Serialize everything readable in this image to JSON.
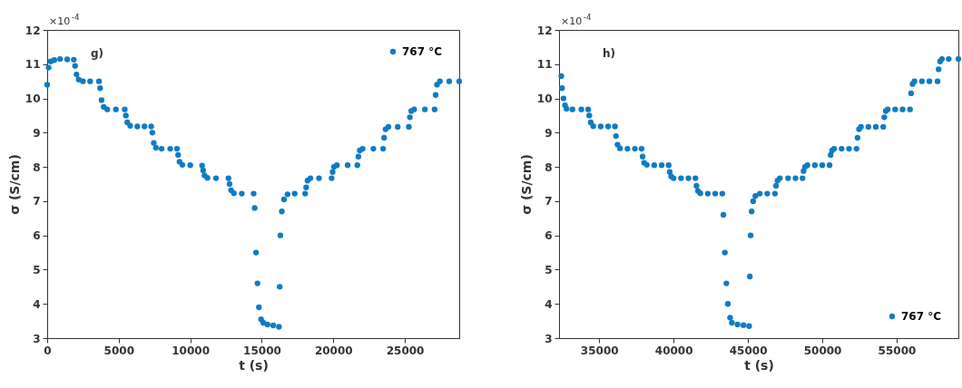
{
  "chart_data": [
    {
      "type": "scatter",
      "xlabel": "t (s)",
      "ylabel": "σ (S/cm)",
      "annotations": [
        "×10$^{-4}$",
        "g)"
      ],
      "xlim": [
        0,
        28800
      ],
      "xticks": [
        0,
        5000,
        10000,
        15000,
        20000,
        25000
      ],
      "ylim": [
        3,
        12
      ],
      "yticks": [
        3,
        4,
        5,
        6,
        7,
        8,
        9,
        10,
        11,
        12
      ],
      "legend": "top right",
      "marker": "circle",
      "series": [
        {
          "name": "767 °C",
          "color": "#0e7cc4",
          "x": [
            0,
            100,
            250,
            500,
            900,
            1400,
            1860,
            1950,
            2050,
            2200,
            2500,
            3000,
            3620,
            3700,
            3800,
            3950,
            4200,
            4800,
            5420,
            5500,
            5600,
            5800,
            6300,
            6800,
            7270,
            7350,
            7450,
            7600,
            8000,
            8600,
            9070,
            9150,
            9250,
            9450,
            10000,
            10830,
            10900,
            11000,
            11200,
            11800,
            12670,
            12750,
            12850,
            13050,
            13600,
            14430,
            14500,
            14600,
            14700,
            14800,
            14950,
            15100,
            15400,
            15800,
            16200,
            16250,
            16300,
            16400,
            16550,
            16800,
            17300,
            18030,
            18100,
            18200,
            18400,
            19000,
            19880,
            19950,
            20050,
            20250,
            21000,
            21680,
            21750,
            21850,
            22050,
            22800,
            23480,
            23550,
            23650,
            23850,
            24500,
            25280,
            25350,
            25450,
            25650,
            26400,
            27080,
            27150,
            27250,
            27450,
            28100,
            28800
          ],
          "values": [
            10.4,
            10.9,
            11.08,
            11.12,
            11.15,
            11.14,
            11.13,
            10.95,
            10.7,
            10.55,
            10.5,
            10.5,
            10.5,
            10.3,
            9.95,
            9.75,
            9.68,
            9.68,
            9.68,
            9.5,
            9.3,
            9.2,
            9.18,
            9.18,
            9.18,
            9.0,
            8.7,
            8.56,
            8.53,
            8.53,
            8.53,
            8.35,
            8.15,
            8.06,
            8.05,
            8.04,
            7.9,
            7.75,
            7.68,
            7.67,
            7.67,
            7.5,
            7.32,
            7.23,
            7.22,
            7.22,
            6.8,
            5.5,
            4.6,
            3.9,
            3.55,
            3.45,
            3.4,
            3.37,
            3.33,
            4.5,
            6.0,
            6.7,
            7.05,
            7.2,
            7.22,
            7.22,
            7.4,
            7.6,
            7.67,
            7.67,
            7.67,
            7.85,
            8.0,
            8.05,
            8.05,
            8.05,
            8.3,
            8.48,
            8.53,
            8.53,
            8.53,
            8.85,
            9.1,
            9.17,
            9.17,
            9.17,
            9.45,
            9.63,
            9.68,
            9.68,
            9.68,
            10.1,
            10.4,
            10.5,
            10.5,
            10.5
          ]
        }
      ]
    },
    {
      "type": "scatter",
      "xlabel": "t (s)",
      "ylabel": "σ (S/cm)",
      "annotations": [
        "×10$^{-4}$",
        "h)"
      ],
      "xlim": [
        32300,
        59150
      ],
      "xticks": [
        35000,
        40000,
        45000,
        50000,
        55000
      ],
      "ylim": [
        3,
        12
      ],
      "yticks": [
        3,
        4,
        5,
        6,
        7,
        8,
        9,
        10,
        11,
        12
      ],
      "legend": "bottom right",
      "marker": "circle",
      "series": [
        {
          "name": "767 °C",
          "color": "#0e7cc4",
          "x": [
            32450,
            32500,
            32600,
            32700,
            32800,
            33200,
            33800,
            34260,
            34330,
            34430,
            34600,
            35100,
            35600,
            36060,
            36130,
            36230,
            36400,
            36900,
            37400,
            37850,
            37920,
            38020,
            38200,
            38700,
            39200,
            39670,
            39740,
            39840,
            40000,
            40500,
            41000,
            41470,
            41540,
            41640,
            41800,
            42300,
            42800,
            43280,
            43350,
            43450,
            43550,
            43650,
            43800,
            43920,
            44300,
            44700,
            45080,
            45130,
            45180,
            45250,
            45350,
            45500,
            45800,
            46300,
            46820,
            46890,
            46990,
            47150,
            47700,
            48200,
            48670,
            48740,
            48840,
            49000,
            49500,
            50000,
            50490,
            50560,
            50660,
            50800,
            51300,
            51800,
            52300,
            52370,
            52470,
            52600,
            53100,
            53600,
            54100,
            54170,
            54270,
            54400,
            54900,
            55400,
            55900,
            55970,
            56070,
            56200,
            56700,
            57200,
            57750,
            57820,
            57920,
            58050,
            58500,
            59150
          ],
          "values": [
            10.65,
            10.3,
            10.0,
            9.8,
            9.7,
            9.68,
            9.68,
            9.68,
            9.5,
            9.3,
            9.19,
            9.18,
            9.18,
            9.18,
            8.9,
            8.65,
            8.54,
            8.53,
            8.53,
            8.53,
            8.3,
            8.12,
            8.06,
            8.05,
            8.05,
            8.05,
            7.85,
            7.72,
            7.67,
            7.67,
            7.67,
            7.67,
            7.45,
            7.3,
            7.23,
            7.22,
            7.22,
            7.22,
            6.6,
            5.5,
            4.6,
            4.0,
            3.6,
            3.45,
            3.4,
            3.38,
            3.35,
            4.8,
            6.0,
            6.7,
            7.0,
            7.15,
            7.22,
            7.22,
            7.22,
            7.45,
            7.6,
            7.67,
            7.67,
            7.67,
            7.67,
            7.88,
            8.0,
            8.05,
            8.05,
            8.05,
            8.05,
            8.35,
            8.48,
            8.53,
            8.53,
            8.53,
            8.53,
            8.85,
            9.1,
            9.17,
            9.17,
            9.17,
            9.17,
            9.45,
            9.63,
            9.68,
            9.68,
            9.68,
            9.68,
            10.15,
            10.42,
            10.5,
            10.5,
            10.5,
            10.5,
            10.85,
            11.08,
            11.15,
            11.15,
            11.15
          ]
        }
      ]
    }
  ]
}
